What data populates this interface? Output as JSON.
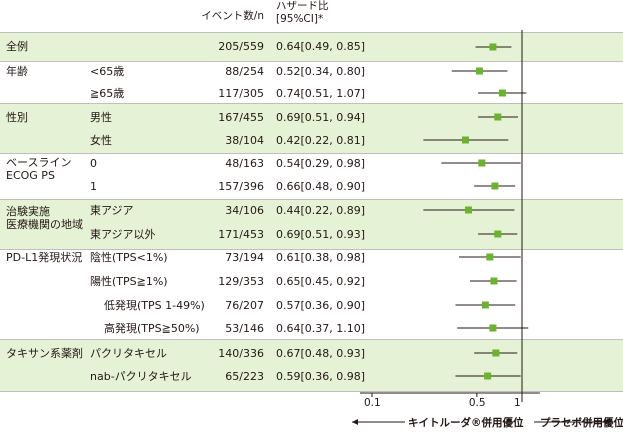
{
  "header": {
    "events_label": "イベント数/n",
    "hr_label_line1": "ハザード比",
    "hr_label_line2": "[95%CI]*"
  },
  "colors": {
    "band": "#e5f2d5",
    "marker": "#6ab42d",
    "line": "#231815"
  },
  "chart_data": {
    "type": "forest",
    "x_scale": "log",
    "xlim": [
      0.1,
      1.2
    ],
    "reference_line": 1,
    "x_ticks": [
      {
        "value": 0.1,
        "label": "0.1"
      },
      {
        "value": 0.5,
        "label": "0.5"
      },
      {
        "value": 1,
        "label": "1"
      }
    ],
    "favor_left": "キイトルーダ®併用優位",
    "favor_right": "プラセボ併用優位",
    "rows": [
      {
        "group": "全例",
        "sub": "",
        "events": "205/559",
        "hr_text": "0.64[0.49, 0.85]",
        "hr": 0.64,
        "lo": 0.49,
        "hi": 0.85
      },
      {
        "group": "年齢",
        "sub": "<65歳",
        "events": "88/254",
        "hr_text": "0.52[0.34, 0.80]",
        "hr": 0.52,
        "lo": 0.34,
        "hi": 0.8
      },
      {
        "group": "",
        "sub": "≧65歳",
        "events": "117/305",
        "hr_text": "0.74[0.51, 1.07]",
        "hr": 0.74,
        "lo": 0.51,
        "hi": 1.07
      },
      {
        "group": "性別",
        "sub": "男性",
        "events": "167/455",
        "hr_text": "0.69[0.51, 0.94]",
        "hr": 0.69,
        "lo": 0.51,
        "hi": 0.94
      },
      {
        "group": "",
        "sub": "女性",
        "events": "38/104",
        "hr_text": "0.42[0.22, 0.81]",
        "hr": 0.42,
        "lo": 0.22,
        "hi": 0.81
      },
      {
        "group": "ベースライン\nECOG PS",
        "sub": "0",
        "events": "48/163",
        "hr_text": "0.54[0.29, 0.98]",
        "hr": 0.54,
        "lo": 0.29,
        "hi": 0.98
      },
      {
        "group": "",
        "sub": "1",
        "events": "157/396",
        "hr_text": "0.66[0.48, 0.90]",
        "hr": 0.66,
        "lo": 0.48,
        "hi": 0.9
      },
      {
        "group": "治験実施\n医療機関の地域",
        "sub": "東アジア",
        "events": "34/106",
        "hr_text": "0.44[0.22, 0.89]",
        "hr": 0.44,
        "lo": 0.22,
        "hi": 0.89
      },
      {
        "group": "",
        "sub": "東アジア以外",
        "events": "171/453",
        "hr_text": "0.69[0.51, 0.93]",
        "hr": 0.69,
        "lo": 0.51,
        "hi": 0.93
      },
      {
        "group": "PD-L1発現状況",
        "sub": "陰性(TPS<1%)",
        "events": "73/194",
        "hr_text": "0.61[0.38, 0.98]",
        "hr": 0.61,
        "lo": 0.38,
        "hi": 0.98
      },
      {
        "group": "",
        "sub": "陽性(TPS≧1%)",
        "events": "129/353",
        "hr_text": "0.65[0.45, 0.92]",
        "hr": 0.65,
        "lo": 0.45,
        "hi": 0.92
      },
      {
        "group": "",
        "sub": "低発現(TPS 1-49%)",
        "indent": true,
        "events": "76/207",
        "hr_text": "0.57[0.36, 0.90]",
        "hr": 0.57,
        "lo": 0.36,
        "hi": 0.9
      },
      {
        "group": "",
        "sub": "高発現(TPS≧50%)",
        "indent": true,
        "events": "53/146",
        "hr_text": "0.64[0.37, 1.10]",
        "hr": 0.64,
        "lo": 0.37,
        "hi": 1.1
      },
      {
        "group": "タキサン系薬剤",
        "sub": "パクリタキセル",
        "events": "140/336",
        "hr_text": "0.67[0.48, 0.93]",
        "hr": 0.67,
        "lo": 0.48,
        "hi": 0.93
      },
      {
        "group": "",
        "sub": "nab-パクリタキセル",
        "events": "65/223",
        "hr_text": "0.59[0.36, 0.98]",
        "hr": 0.59,
        "lo": 0.36,
        "hi": 0.98
      }
    ]
  }
}
